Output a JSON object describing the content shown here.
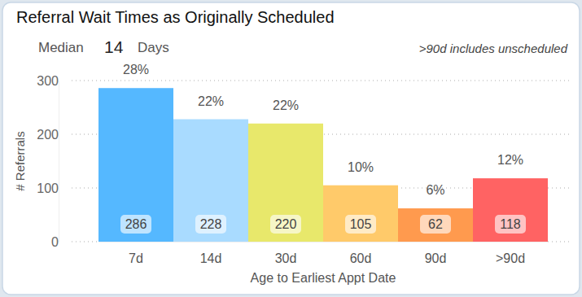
{
  "chart_data": {
    "type": "bar",
    "title": "Referral Wait Times as Originally Scheduled",
    "median_label": "Median",
    "median": 14,
    "median_unit": "Days",
    "annotation": ">90d includes unscheduled",
    "x_label": "Age to Earliest Appt Date",
    "y_label": "# Referrals",
    "categories": [
      "7d",
      "14d",
      "30d",
      "60d",
      "90d",
      ">90d"
    ],
    "values": [
      286,
      228,
      220,
      105,
      62,
      118
    ],
    "percent_labels": [
      "28%",
      "22%",
      "22%",
      "10%",
      "6%",
      "12%"
    ],
    "colors": [
      "#55b8ff",
      "#a9dbff",
      "#e8e86b",
      "#ffca6a",
      "#ff9a4e",
      "#ff6363"
    ],
    "ylim": [
      0,
      300
    ],
    "yticks": [
      0,
      100,
      200,
      300
    ],
    "grid": true,
    "data_labels": true
  }
}
